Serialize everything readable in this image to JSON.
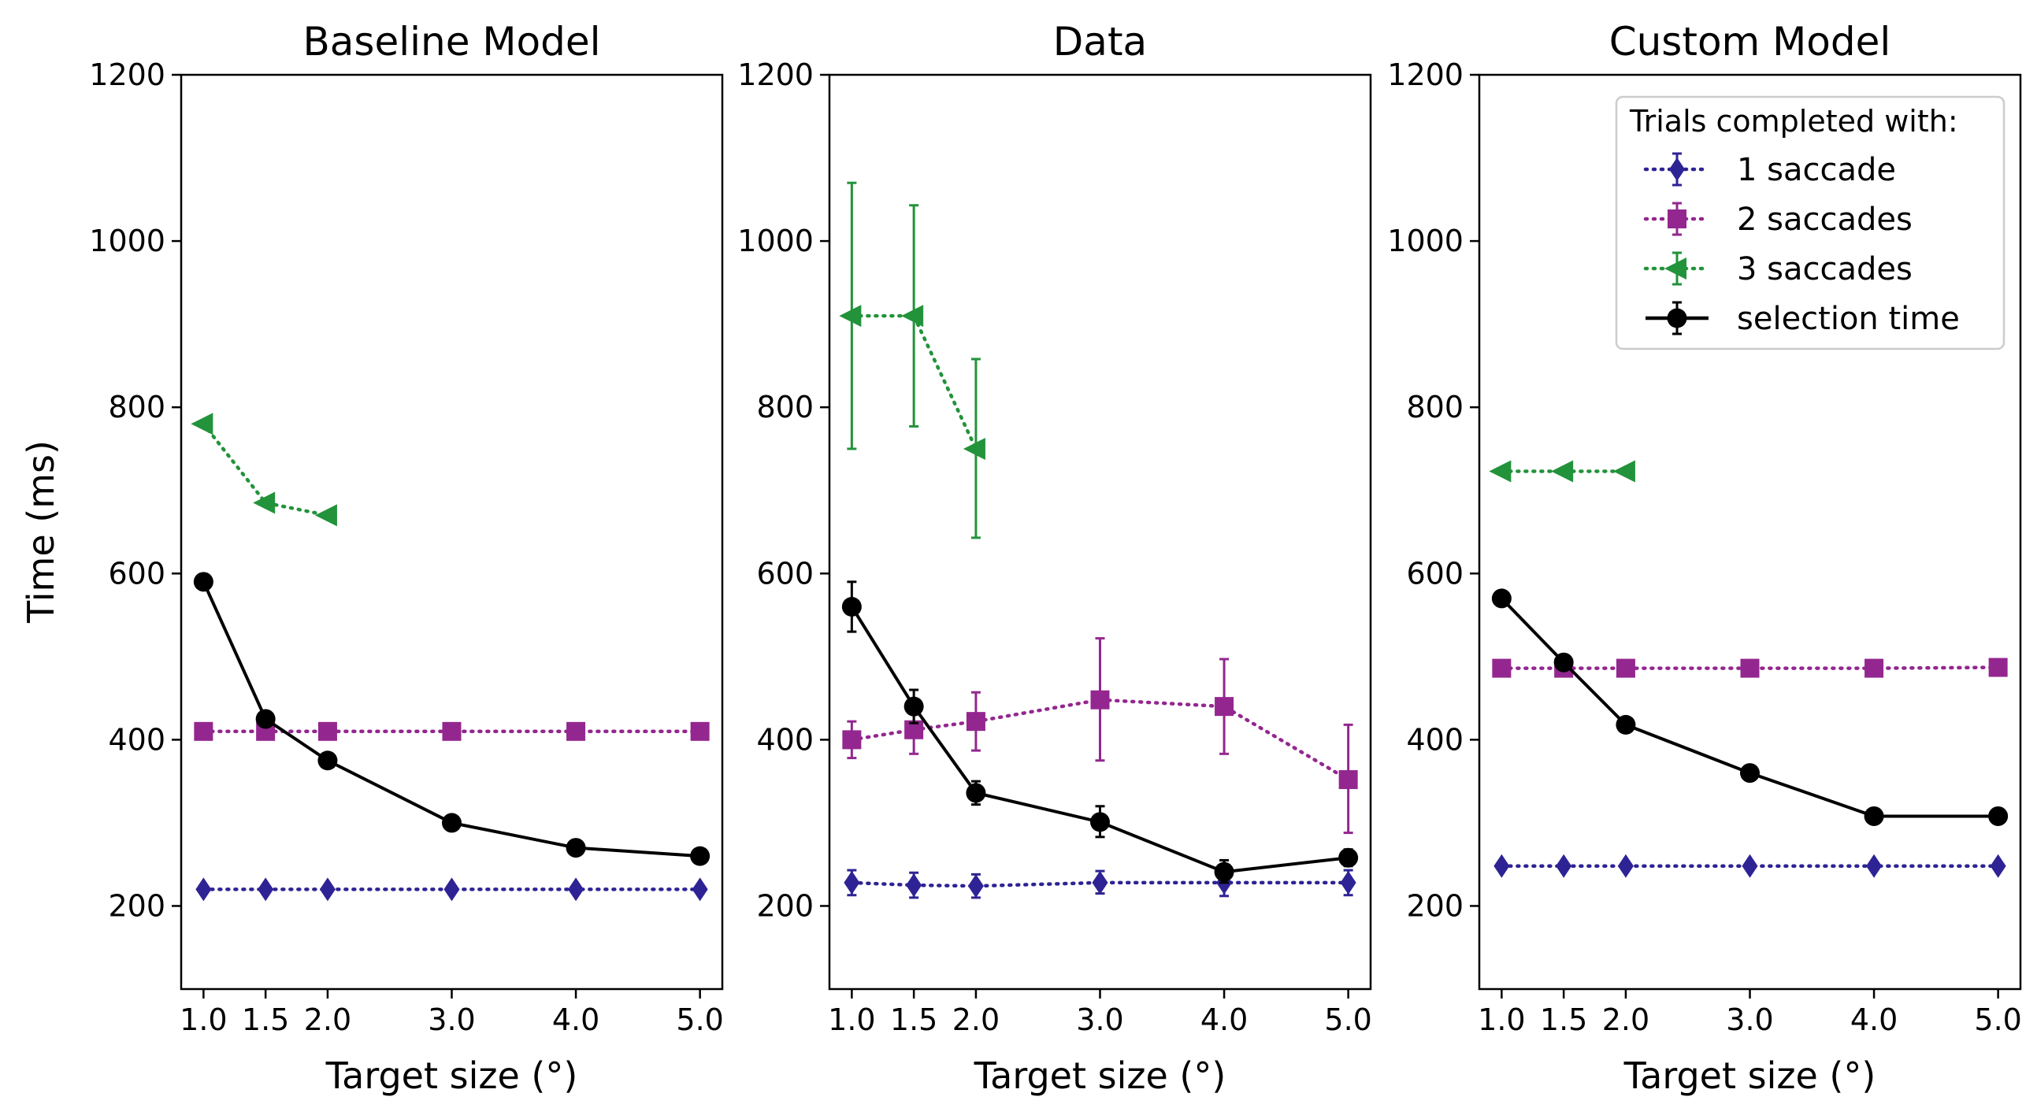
{
  "chart_data": [
    {
      "type": "line",
      "title": "Baseline Model",
      "xlabel": "Target size (°)",
      "ylabel": "Time (ms)",
      "x": [
        1.0,
        1.5,
        2.0,
        3.0,
        4.0,
        5.0
      ],
      "x_tick_labels": [
        "1.0",
        "1.5",
        "2.0",
        "3.0",
        "4.0",
        "5.0"
      ],
      "y_ticks": [
        200,
        400,
        600,
        800,
        1000,
        1200
      ],
      "ylim": [
        100,
        1200
      ],
      "xlim": [
        0.82,
        5.18
      ],
      "grid": false,
      "series": [
        {
          "key": "s1",
          "marker": "diamond",
          "line": "dotted",
          "color": "#2e2394",
          "values": [
            220,
            220,
            220,
            220,
            220,
            220
          ]
        },
        {
          "key": "s2",
          "marker": "square",
          "line": "dotted",
          "color": "#93278f",
          "values": [
            410,
            410,
            410,
            410,
            410,
            410
          ]
        },
        {
          "key": "s3",
          "marker": "triangle-left",
          "line": "dotted",
          "color": "#22933a",
          "values": [
            780,
            685,
            670,
            null,
            null,
            null
          ]
        },
        {
          "key": "sel",
          "marker": "circle",
          "line": "solid",
          "color": "#000000",
          "values": [
            590,
            425,
            375,
            300,
            270,
            260
          ]
        }
      ]
    },
    {
      "type": "line",
      "title": "Data",
      "xlabel": "Target size (°)",
      "ylabel": "",
      "x": [
        1.0,
        1.5,
        2.0,
        3.0,
        4.0,
        5.0
      ],
      "x_tick_labels": [
        "1.0",
        "1.5",
        "2.0",
        "3.0",
        "4.0",
        "5.0"
      ],
      "y_ticks": [
        200,
        400,
        600,
        800,
        1000,
        1200
      ],
      "ylim": [
        100,
        1200
      ],
      "xlim": [
        0.82,
        5.18
      ],
      "grid": false,
      "series": [
        {
          "key": "s1",
          "marker": "diamond",
          "line": "dotted",
          "color": "#2e2394",
          "values": [
            228,
            225,
            224,
            228,
            228,
            228
          ],
          "error": [
            [
              213,
              243
            ],
            [
              210,
              240
            ],
            [
              210,
              238
            ],
            [
              215,
              242
            ],
            [
              212,
              244
            ],
            [
              213,
              243
            ]
          ]
        },
        {
          "key": "s2",
          "marker": "square",
          "line": "dotted",
          "color": "#93278f",
          "values": [
            400,
            412,
            422,
            448,
            440,
            352
          ],
          "error": [
            [
              378,
              422
            ],
            [
              383,
              442
            ],
            [
              387,
              457
            ],
            [
              375,
              522
            ],
            [
              383,
              497
            ],
            [
              288,
              418
            ]
          ]
        },
        {
          "key": "s3",
          "marker": "triangle-left",
          "line": "dotted",
          "color": "#22933a",
          "values": [
            910,
            910,
            750,
            null,
            null,
            null
          ],
          "error": [
            [
              750,
              1070
            ],
            [
              777,
              1043
            ],
            [
              643,
              858
            ],
            null,
            null,
            null
          ]
        },
        {
          "key": "sel",
          "marker": "circle",
          "line": "solid",
          "color": "#000000",
          "values": [
            560,
            440,
            336,
            301,
            241,
            258
          ],
          "error": [
            [
              530,
              590
            ],
            [
              420,
              460
            ],
            [
              322,
              350
            ],
            [
              283,
              320
            ],
            [
              228,
              255
            ],
            [
              248,
              268
            ]
          ]
        }
      ]
    },
    {
      "type": "line",
      "title": "Custom Model",
      "xlabel": "Target size (°)",
      "ylabel": "",
      "x": [
        1.0,
        1.5,
        2.0,
        3.0,
        4.0,
        5.0
      ],
      "x_tick_labels": [
        "1.0",
        "1.5",
        "2.0",
        "3.0",
        "4.0",
        "5.0"
      ],
      "y_ticks": [
        200,
        400,
        600,
        800,
        1000,
        1200
      ],
      "ylim": [
        100,
        1200
      ],
      "xlim": [
        0.82,
        5.18
      ],
      "grid": false,
      "legend": {
        "placement": "top-right",
        "title": "Trials completed with:",
        "entries": [
          {
            "key": "s1",
            "label": "1 saccade"
          },
          {
            "key": "s2",
            "label": "2 saccades"
          },
          {
            "key": "s3",
            "label": "3 saccades"
          },
          {
            "key": "sel",
            "label": "selection time"
          }
        ]
      },
      "series": [
        {
          "key": "s1",
          "marker": "diamond",
          "line": "dotted",
          "color": "#2e2394",
          "values": [
            248,
            248,
            248,
            248,
            248,
            248
          ]
        },
        {
          "key": "s2",
          "marker": "square",
          "line": "dotted",
          "color": "#93278f",
          "values": [
            486,
            486,
            486,
            486,
            486,
            487
          ]
        },
        {
          "key": "s3",
          "marker": "triangle-left",
          "line": "dotted",
          "color": "#22933a",
          "values": [
            723,
            723,
            723,
            null,
            null,
            null
          ]
        },
        {
          "key": "sel",
          "marker": "circle",
          "line": "solid",
          "color": "#000000",
          "values": [
            570,
            493,
            418,
            360,
            308,
            308
          ]
        }
      ]
    }
  ]
}
